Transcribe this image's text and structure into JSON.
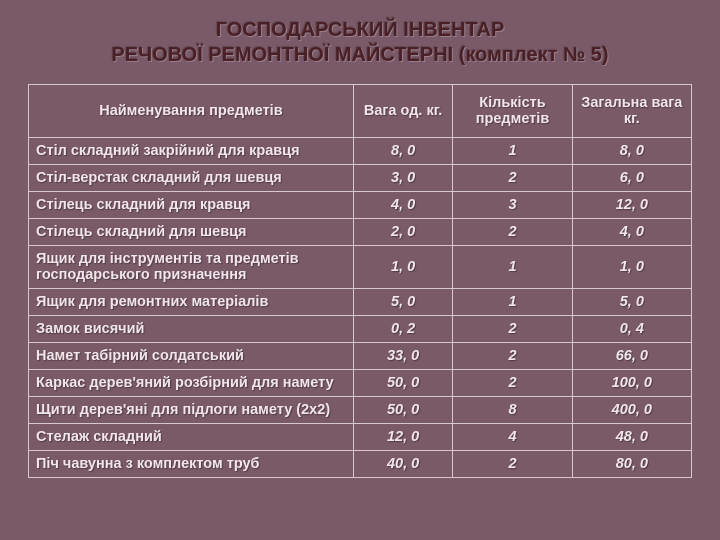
{
  "title_line1": "ГОСПОДАРСЬКИЙ ІНВЕНТАР",
  "title_line2": "РЕЧОВОЇ РЕМОНТНОЇ МАЙСТЕРНІ (комплект № 5)",
  "table": {
    "type": "table",
    "background_color": "#7a5a68",
    "border_color": "#d8c8ce",
    "text_color": "#f2e6eb",
    "header_fontsize": 14.5,
    "cell_fontsize": 14.5,
    "columns": [
      {
        "label": "Найменування предметів",
        "align": "left",
        "width_pct": 49
      },
      {
        "label": "Вага од. кг.",
        "align": "center",
        "width_pct": 15
      },
      {
        "label": "Кількість предметів",
        "align": "center",
        "width_pct": 18
      },
      {
        "label": "Загальна вага  кг.",
        "align": "center",
        "width_pct": 18
      }
    ],
    "rows": [
      {
        "name": "Стіл складний закрійний для кравця",
        "weight": "8, 0",
        "qty": "1",
        "total": "8, 0"
      },
      {
        "name": "Стіл-верстак складний для шевця",
        "weight": "3, 0",
        "qty": "2",
        "total": "6, 0"
      },
      {
        "name": "Стілець складний для кравця",
        "weight": "4, 0",
        "qty": "3",
        "total": "12, 0"
      },
      {
        "name": "Стілець складний для шевця",
        "weight": "2, 0",
        "qty": "2",
        "total": "4, 0"
      },
      {
        "name": "Ящик для інструментів та предметів господарського призначення",
        "weight": "1, 0",
        "qty": "1",
        "total": "1, 0"
      },
      {
        "name": "Ящик для ремонтних матеріалів",
        "weight": "5, 0",
        "qty": "1",
        "total": "5, 0"
      },
      {
        "name": "Замок висячий",
        "weight": "0, 2",
        "qty": "2",
        "total": "0, 4"
      },
      {
        "name": "Намет табірний солдатський",
        "weight": "33, 0",
        "qty": "2",
        "total": "66, 0"
      },
      {
        "name": "Каркас дерев'яний розбірний для намету",
        "weight": "50, 0",
        "qty": "2",
        "total": "100, 0"
      },
      {
        "name": "Щити дерев'яні для підлоги намету (2х2)",
        "weight": "50, 0",
        "qty": "8",
        "total": "400, 0"
      },
      {
        "name": "Стелаж складний",
        "weight": "12, 0",
        "qty": "4",
        "total": "48, 0"
      },
      {
        "name": "Піч чавунна з комплектом труб",
        "weight": "40, 0",
        "qty": "2",
        "total": "80, 0"
      }
    ]
  }
}
